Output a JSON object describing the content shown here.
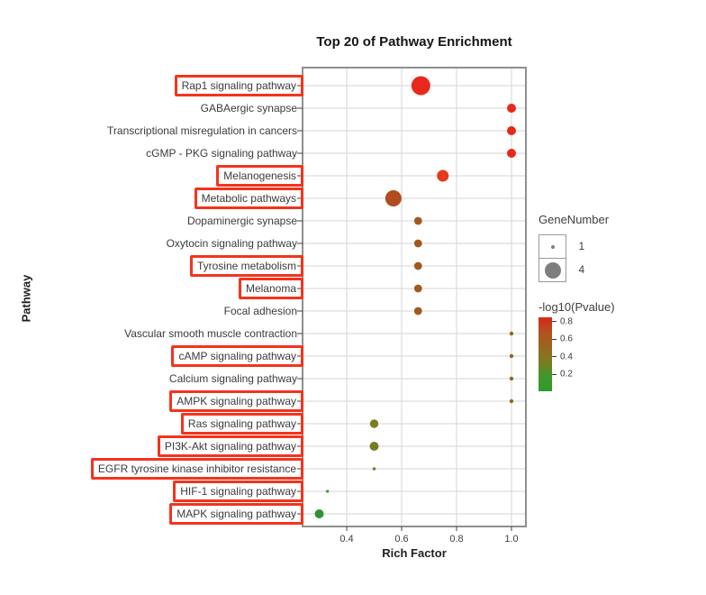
{
  "chart_data": {
    "type": "scatter",
    "title": "Top 20 of Pathway Enrichment",
    "xlabel": "Rich Factor",
    "ylabel": "Pathway",
    "x_ticks": [
      "0.4",
      "0.6",
      "0.8",
      "1.0"
    ],
    "x_tick_values": [
      0.4,
      0.6,
      0.8,
      1.0
    ],
    "xlim": [
      0.24,
      1.05
    ],
    "grid": true,
    "colors": {
      "highlight_box": "#f5331c",
      "gridline": "#d6d6d6",
      "plot_border": "#8f8f8f",
      "tick": "#404040",
      "axis_text": "#404040"
    },
    "points": [
      {
        "label": "Rap1 signaling pathway",
        "boxed": true,
        "rich_factor": 0.67,
        "gene_number": 4,
        "neglog10_pvalue": 0.8,
        "color": "#e8281b",
        "radius": 10.5
      },
      {
        "label": "GABAergic synapse",
        "boxed": false,
        "rich_factor": 1.0,
        "gene_number": 2,
        "neglog10_pvalue": 0.78,
        "color": "#e8281b",
        "radius": 5
      },
      {
        "label": "Transcriptional misregulation in cancers",
        "boxed": false,
        "rich_factor": 1.0,
        "gene_number": 2,
        "neglog10_pvalue": 0.78,
        "color": "#e8281b",
        "radius": 5
      },
      {
        "label": "cGMP - PKG signaling pathway",
        "boxed": false,
        "rich_factor": 1.0,
        "gene_number": 2,
        "neglog10_pvalue": 0.78,
        "color": "#e8281b",
        "radius": 5
      },
      {
        "label": "Melanogenesis",
        "boxed": true,
        "rich_factor": 0.75,
        "gene_number": 3,
        "neglog10_pvalue": 0.75,
        "color": "#e63a1c",
        "radius": 6.5
      },
      {
        "label": "Metabolic pathways",
        "boxed": true,
        "rich_factor": 0.57,
        "gene_number": 4,
        "neglog10_pvalue": 0.6,
        "color": "#b04c1e",
        "radius": 9
      },
      {
        "label": "Dopaminergic synapse",
        "boxed": false,
        "rich_factor": 0.66,
        "gene_number": 2,
        "neglog10_pvalue": 0.55,
        "color": "#a05a20",
        "radius": 4.4
      },
      {
        "label": "Oxytocin signaling pathway",
        "boxed": false,
        "rich_factor": 0.66,
        "gene_number": 2,
        "neglog10_pvalue": 0.55,
        "color": "#a05a20",
        "radius": 4.4
      },
      {
        "label": "Tyrosine metabolism",
        "boxed": true,
        "rich_factor": 0.66,
        "gene_number": 2,
        "neglog10_pvalue": 0.55,
        "color": "#a05a20",
        "radius": 4.4
      },
      {
        "label": "Melanoma",
        "boxed": true,
        "rich_factor": 0.66,
        "gene_number": 2,
        "neglog10_pvalue": 0.55,
        "color": "#a05a20",
        "radius": 4.4
      },
      {
        "label": "Focal adhesion",
        "boxed": false,
        "rich_factor": 0.66,
        "gene_number": 2,
        "neglog10_pvalue": 0.55,
        "color": "#a05a20",
        "radius": 4.4
      },
      {
        "label": "Vascular smooth muscle contraction",
        "boxed": false,
        "rich_factor": 1.0,
        "gene_number": 1,
        "neglog10_pvalue": 0.45,
        "color": "#8f681c",
        "radius": 2.2
      },
      {
        "label": "cAMP signaling pathway",
        "boxed": true,
        "rich_factor": 1.0,
        "gene_number": 1,
        "neglog10_pvalue": 0.45,
        "color": "#8f681c",
        "radius": 2.2
      },
      {
        "label": "Calcium signaling pathway",
        "boxed": false,
        "rich_factor": 1.0,
        "gene_number": 1,
        "neglog10_pvalue": 0.45,
        "color": "#8f681c",
        "radius": 2.2
      },
      {
        "label": "AMPK signaling pathway",
        "boxed": true,
        "rich_factor": 1.0,
        "gene_number": 1,
        "neglog10_pvalue": 0.45,
        "color": "#8f681c",
        "radius": 2.2
      },
      {
        "label": "Ras signaling pathway",
        "boxed": true,
        "rich_factor": 0.5,
        "gene_number": 2,
        "neglog10_pvalue": 0.33,
        "color": "#7a7c23",
        "radius": 4.7
      },
      {
        "label": "PI3K-Akt signaling pathway",
        "boxed": true,
        "rich_factor": 0.5,
        "gene_number": 2,
        "neglog10_pvalue": 0.33,
        "color": "#7a7c23",
        "radius": 5
      },
      {
        "label": "EGFR tyrosine kinase inhibitor resistance",
        "boxed": true,
        "rich_factor": 0.5,
        "gene_number": 1,
        "neglog10_pvalue": 0.25,
        "color": "#5f8c26",
        "radius": 1.8
      },
      {
        "label": "HIF-1 signaling pathway",
        "boxed": true,
        "rich_factor": 0.33,
        "gene_number": 1,
        "neglog10_pvalue": 0.18,
        "color": "#3f9629",
        "radius": 1.6
      },
      {
        "label": "MAPK signaling pathway",
        "boxed": true,
        "rich_factor": 0.3,
        "gene_number": 2,
        "neglog10_pvalue": 0.15,
        "color": "#2e9331",
        "radius": 5
      }
    ],
    "legend": {
      "size_title": "GeneNumber",
      "size_items": [
        {
          "label": "1",
          "radius": 2
        },
        {
          "label": "4",
          "radius": 9
        }
      ],
      "size_dot_color": "#7e7e7e",
      "color_title": "-log10(Pvalue)",
      "color_ticks": [
        "0.8",
        "0.6",
        "0.4",
        "0.2"
      ],
      "gradient": [
        "#d6281a",
        "#b4511e",
        "#97661f",
        "#7c7b22",
        "#41982b",
        "#2f9a2e"
      ]
    }
  }
}
